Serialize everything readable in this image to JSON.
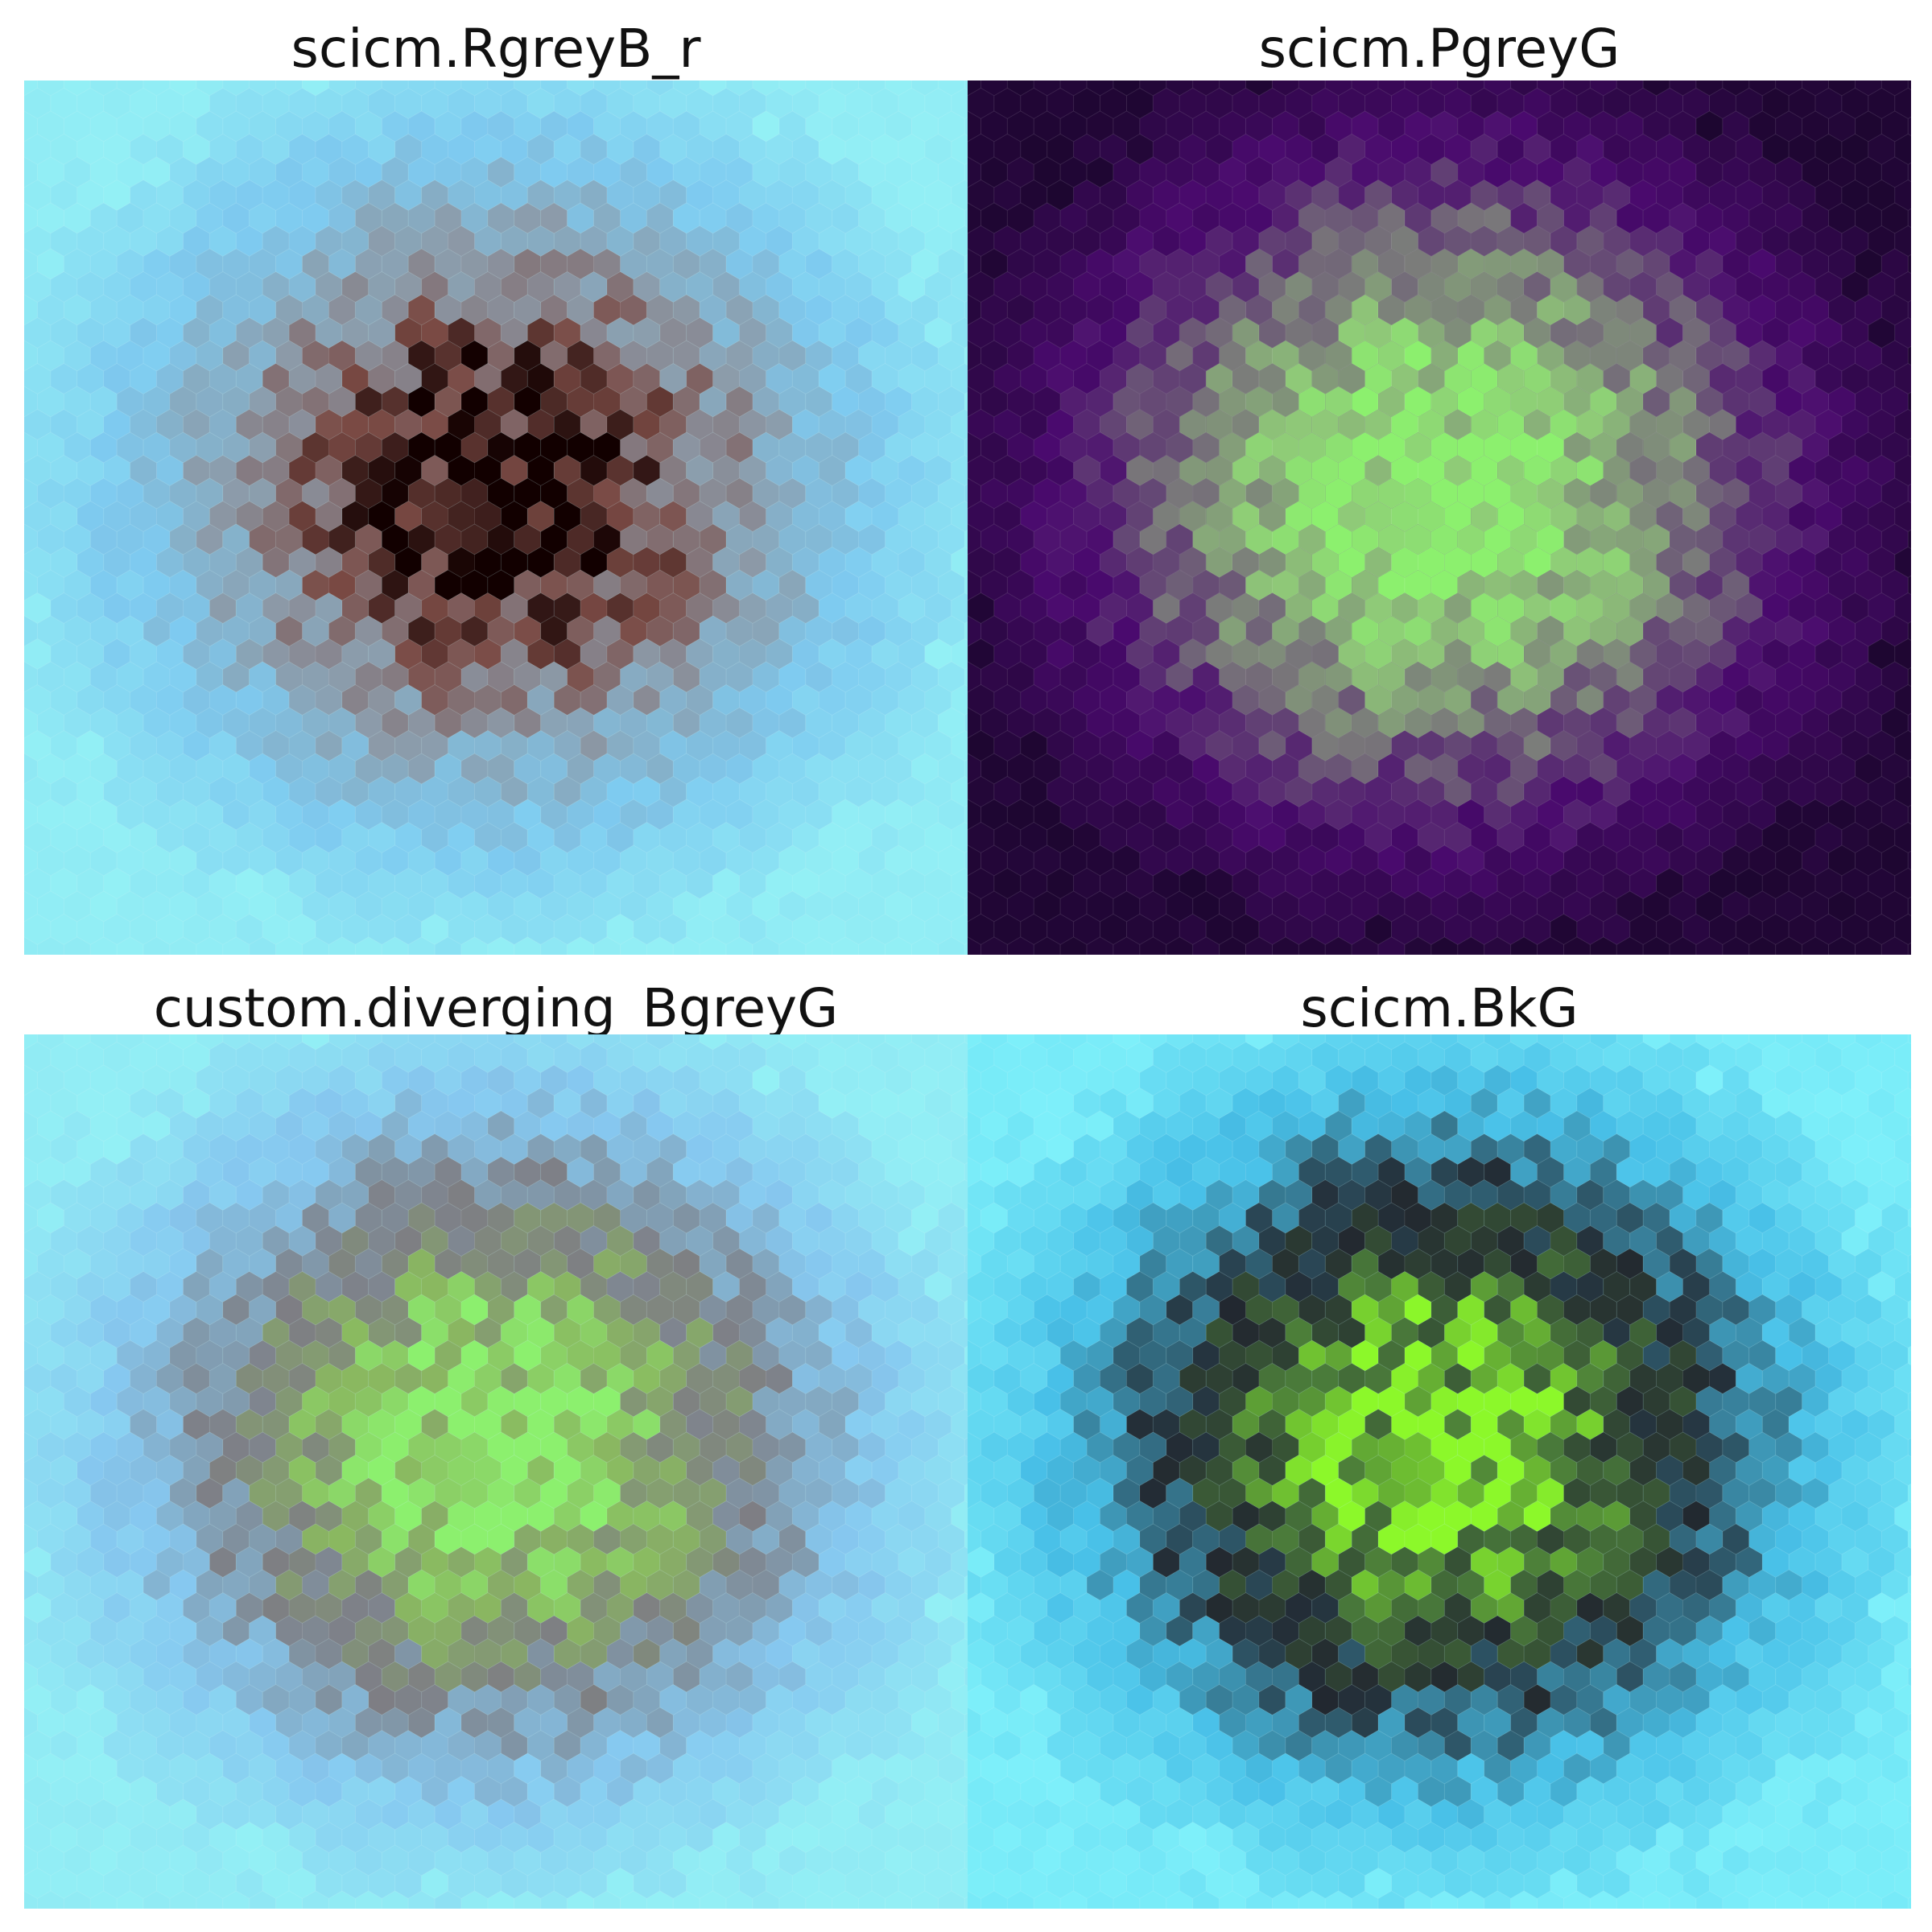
{
  "chart_data": [
    {
      "type": "heatmap",
      "kind": "hexbin",
      "title": "scicm.RgreyB_r",
      "colormap": "scicm.RgreyB_r",
      "axes_visible": false,
      "grid": false,
      "legend": "none",
      "colors": {
        "low": "#93f0f5",
        "mid_low": "#7ecaf0",
        "mid": "#8c9aa8",
        "mid_high": "#7a4a44",
        "high": "#120000"
      }
    },
    {
      "type": "heatmap",
      "kind": "hexbin",
      "title": "scicm.PgreyG",
      "colormap": "scicm.PgreyG",
      "axes_visible": false,
      "grid": false,
      "legend": "none",
      "colors": {
        "low": "#1d0630",
        "mid_low": "#4a0a6e",
        "mid": "#7a7a7a",
        "mid_high": "#8fc878",
        "high": "#8cf06e"
      }
    },
    {
      "type": "heatmap",
      "kind": "hexbin",
      "title": "custom.diverging_BgreyG",
      "colormap": "custom.diverging_BgreyG",
      "axes_visible": false,
      "grid": false,
      "legend": "none",
      "colors": {
        "low": "#93f0f5",
        "mid_low": "#86c8f0",
        "mid": "#7e7e84",
        "mid_high": "#8ab860",
        "high": "#8cf06e"
      }
    },
    {
      "type": "heatmap",
      "kind": "hexbin",
      "title": "scicm.BkG",
      "colormap": "scicm.BkG",
      "axes_visible": false,
      "grid": false,
      "legend": "none",
      "colors": {
        "low": "#7ef0fa",
        "mid_low": "#48c0e8",
        "mid": "#222830",
        "mid_high": "#4a7a3a",
        "high": "#8cf82a"
      }
    }
  ]
}
